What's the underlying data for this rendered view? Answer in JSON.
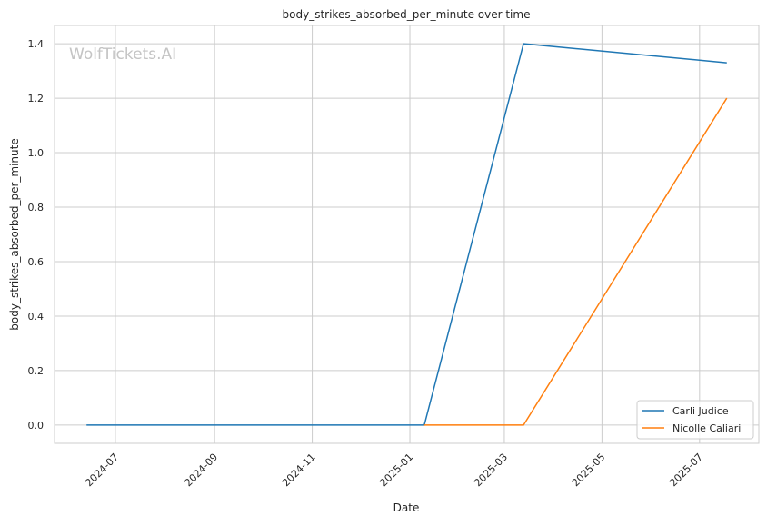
{
  "chart_data": {
    "type": "line",
    "title": "body_strikes_absorbed_per_minute over time",
    "xlabel": "Date",
    "ylabel": "body_strikes_absorbed_per_minute",
    "watermark": "WolfTickets.AI",
    "xlim": [
      "2024-05-24",
      "2025-08-07"
    ],
    "ylim": [
      -0.067,
      1.467
    ],
    "x_ticks": [
      "2024-07",
      "2024-09",
      "2024-11",
      "2025-01",
      "2025-03",
      "2025-05",
      "2025-07"
    ],
    "y_ticks": [
      0.0,
      0.2,
      0.4,
      0.6,
      0.8,
      1.0,
      1.2,
      1.4
    ],
    "grid": true,
    "legend_position": "bottom-right",
    "series": [
      {
        "name": "Carli Judice",
        "color": "#1f77b4",
        "x": [
          "2024-06-13",
          "2025-01-10",
          "2025-03-13",
          "2025-07-18"
        ],
        "y": [
          0.0,
          0.0,
          1.4,
          1.33
        ]
      },
      {
        "name": "Nicolle Caliari",
        "color": "#ff7f0e",
        "x": [
          "2025-01-10",
          "2025-03-13",
          "2025-07-18"
        ],
        "y": [
          0.0,
          0.0,
          1.2
        ]
      }
    ]
  }
}
